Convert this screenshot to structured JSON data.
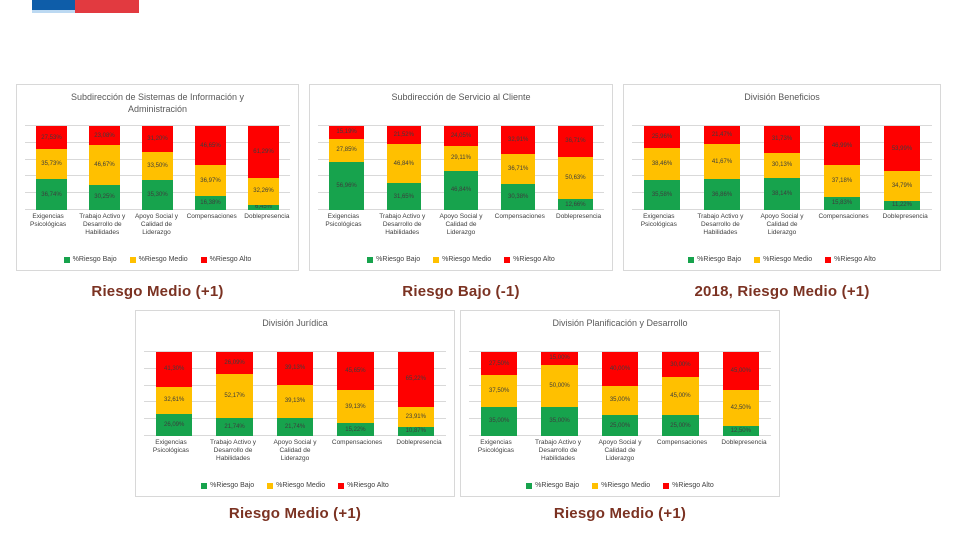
{
  "logo": {
    "name": "gobierno-chile-logo",
    "blue": "#0e5da9",
    "red": "#e23a40"
  },
  "colors": {
    "riesgo_bajo": "#17a34d",
    "riesgo_medio": "#ffc000",
    "riesgo_alto": "#fe0000",
    "gridline": "#d9d9d9",
    "panel_border": "#d8d8d8",
    "chart_title_text": "#595959",
    "caption_text": "#7b3222"
  },
  "legend": [
    "%Riesgo Bajo",
    "%Riesgo Medio",
    "%Riesgo Alto"
  ],
  "categories": [
    "Exigencias Psicológicas",
    "Trabajo Activo y Desarrollo de Habilidades",
    "Apoyo Social y Calidad de Liderazgo",
    "Compensaciones",
    "Doblepresencia"
  ],
  "chart_data": [
    {
      "type": "bar",
      "stacked": true,
      "title": "Subdirección de Sistemas de Información y Administración",
      "caption": "Riesgo Medio (+1)",
      "categories": [
        "Exigencias Psicológicas",
        "Trabajo Activo y Desarrollo de Habilidades",
        "Apoyo Social y Calidad de Liderazgo",
        "Compensaciones",
        "Doblepresencia"
      ],
      "series": [
        {
          "name": "%Riesgo Bajo",
          "color": "#17a34d",
          "values": [
            36.74,
            30.25,
            35.3,
            16.38,
            6.45
          ]
        },
        {
          "name": "%Riesgo Medio",
          "color": "#ffc000",
          "values": [
            35.73,
            46.67,
            33.5,
            36.97,
            32.26
          ]
        },
        {
          "name": "%Riesgo Alto",
          "color": "#fe0000",
          "values": [
            27.53,
            23.08,
            31.2,
            46.65,
            61.29
          ]
        }
      ],
      "ylim": [
        0,
        100
      ],
      "grid": true,
      "legend_position": "bottom"
    },
    {
      "type": "bar",
      "stacked": true,
      "title": "Subdirección de Servicio al Cliente",
      "caption": "Riesgo Bajo (-1)",
      "categories": [
        "Exigencias Psicológicas",
        "Trabajo Activo y Desarrollo de Habilidades",
        "Apoyo Social y Calidad de Liderazgo",
        "Compensaciones",
        "Doblepresencia"
      ],
      "series": [
        {
          "name": "%Riesgo Bajo",
          "color": "#17a34d",
          "values": [
            56.96,
            31.65,
            46.84,
            30.38,
            12.66
          ]
        },
        {
          "name": "%Riesgo Medio",
          "color": "#ffc000",
          "values": [
            27.85,
            46.84,
            29.11,
            36.71,
            50.63
          ]
        },
        {
          "name": "%Riesgo Alto",
          "color": "#fe0000",
          "values": [
            15.19,
            21.52,
            24.05,
            32.91,
            36.71
          ]
        }
      ],
      "ylim": [
        0,
        100
      ],
      "grid": true,
      "legend_position": "bottom"
    },
    {
      "type": "bar",
      "stacked": true,
      "title": "División Beneficios",
      "caption": "2018, Riesgo Medio (+1)",
      "categories": [
        "Exigencias Psicológicas",
        "Trabajo Activo y Desarrollo de Habilidades",
        "Apoyo Social y Calidad de Liderazgo",
        "Compensaciones",
        "Doblepresencia"
      ],
      "series": [
        {
          "name": "%Riesgo Bajo",
          "color": "#17a34d",
          "values": [
            35.58,
            36.86,
            38.14,
            15.83,
            11.22
          ]
        },
        {
          "name": "%Riesgo Medio",
          "color": "#ffc000",
          "values": [
            38.46,
            41.67,
            30.13,
            37.18,
            34.79
          ]
        },
        {
          "name": "%Riesgo Alto",
          "color": "#fe0000",
          "values": [
            25.96,
            21.47,
            31.73,
            46.99,
            53.99
          ]
        }
      ],
      "ylim": [
        0,
        100
      ],
      "grid": true,
      "legend_position": "bottom"
    },
    {
      "type": "bar",
      "stacked": true,
      "title": "División Jurídica",
      "caption": "Riesgo Medio (+1)",
      "categories": [
        "Exigencias Psicológicas",
        "Trabajo Activo y Desarrollo de Habilidades",
        "Apoyo Social y Calidad de Liderazgo",
        "Compensaciones",
        "Doblepresencia"
      ],
      "series": [
        {
          "name": "%Riesgo Bajo",
          "color": "#17a34d",
          "values": [
            26.09,
            21.74,
            21.74,
            15.22,
            10.87
          ]
        },
        {
          "name": "%Riesgo Medio",
          "color": "#ffc000",
          "values": [
            32.61,
            52.17,
            39.13,
            39.13,
            23.91
          ]
        },
        {
          "name": "%Riesgo Alto",
          "color": "#fe0000",
          "values": [
            41.3,
            26.09,
            39.13,
            45.65,
            65.22
          ]
        }
      ],
      "ylim": [
        0,
        100
      ],
      "grid": true,
      "legend_position": "bottom"
    },
    {
      "type": "bar",
      "stacked": true,
      "title": "División Planificación y Desarrollo",
      "caption": "Riesgo Medio (+1)",
      "categories": [
        "Exigencias Psicológicas",
        "Trabajo Activo y Desarrollo de Habilidades",
        "Apoyo Social y Calidad de Liderazgo",
        "Compensaciones",
        "Doblepresencia"
      ],
      "series": [
        {
          "name": "%Riesgo Bajo",
          "color": "#17a34d",
          "values": [
            35.0,
            35.0,
            25.0,
            25.0,
            12.5
          ]
        },
        {
          "name": "%Riesgo Medio",
          "color": "#ffc000",
          "values": [
            37.5,
            50.0,
            35.0,
            45.0,
            42.5
          ]
        },
        {
          "name": "%Riesgo Alto",
          "color": "#fe0000",
          "values": [
            27.5,
            15.0,
            40.0,
            30.0,
            45.0
          ]
        }
      ],
      "ylim": [
        0,
        100
      ],
      "grid": true,
      "legend_position": "bottom"
    }
  ]
}
